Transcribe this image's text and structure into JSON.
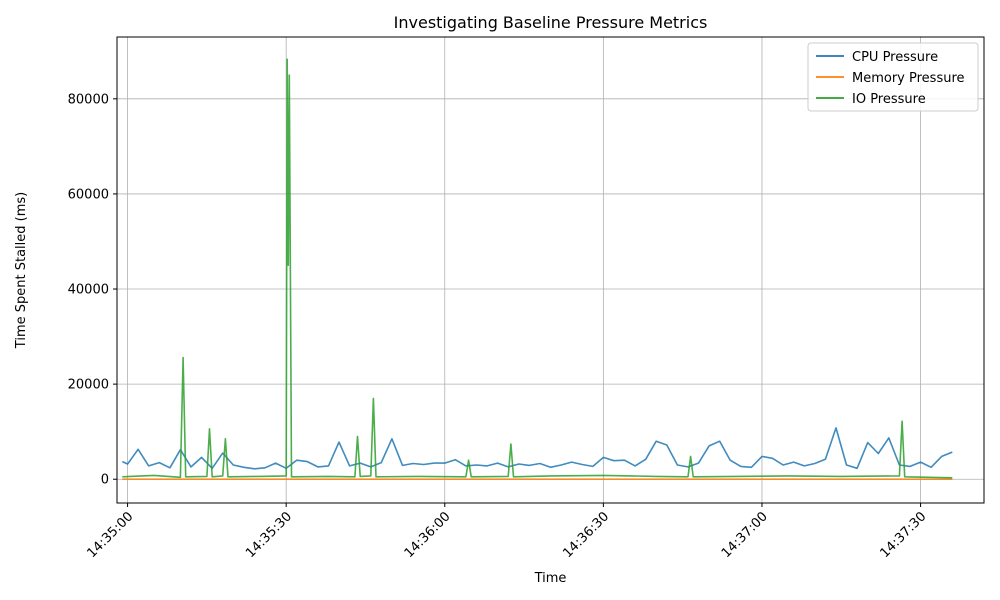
{
  "chart_data": {
    "type": "line",
    "title": "Investigating Baseline Pressure Metrics",
    "xlabel": "Time",
    "ylabel": "Time Spent Stalled (ms)",
    "x_ticks": [
      "14:35:00",
      "14:35:30",
      "14:36:00",
      "14:36:30",
      "14:37:00",
      "14:37:30"
    ],
    "y_ticks": [
      0,
      20000,
      40000,
      60000,
      80000
    ],
    "xlim": [
      "14:34:58",
      "14:37:42"
    ],
    "ylim": [
      -5000,
      93000
    ],
    "grid": true,
    "legend_position": "top-right",
    "series": [
      {
        "name": "CPU Pressure",
        "color": "#1f77b4",
        "x": [
          "14:34:59",
          "14:35:00",
          "14:35:02",
          "14:35:04",
          "14:35:06",
          "14:35:08",
          "14:35:10",
          "14:35:12",
          "14:35:14",
          "14:35:16",
          "14:35:18",
          "14:35:20",
          "14:35:22",
          "14:35:24",
          "14:35:26",
          "14:35:28",
          "14:35:30",
          "14:35:32",
          "14:35:34",
          "14:35:36",
          "14:35:38",
          "14:35:40",
          "14:35:42",
          "14:35:44",
          "14:35:46",
          "14:35:48",
          "14:35:50",
          "14:35:52",
          "14:35:54",
          "14:35:56",
          "14:35:58",
          "14:36:00",
          "14:36:02",
          "14:36:04",
          "14:36:06",
          "14:36:08",
          "14:36:10",
          "14:36:12",
          "14:36:14",
          "14:36:16",
          "14:36:18",
          "14:36:20",
          "14:36:22",
          "14:36:24",
          "14:36:26",
          "14:36:28",
          "14:36:30",
          "14:36:32",
          "14:36:34",
          "14:36:36",
          "14:36:38",
          "14:36:40",
          "14:36:42",
          "14:36:44",
          "14:36:46",
          "14:36:48",
          "14:36:50",
          "14:36:52",
          "14:36:54",
          "14:36:56",
          "14:36:58",
          "14:37:00",
          "14:37:02",
          "14:37:04",
          "14:37:06",
          "14:37:08",
          "14:37:10",
          "14:37:12",
          "14:37:14",
          "14:37:16",
          "14:37:18",
          "14:37:20",
          "14:37:22",
          "14:37:24",
          "14:37:26",
          "14:37:28",
          "14:37:30",
          "14:37:32",
          "14:37:34",
          "14:37:36"
        ],
        "y": [
          3700,
          3200,
          6300,
          2800,
          3500,
          2400,
          6200,
          2600,
          4600,
          2300,
          5500,
          3000,
          2500,
          2200,
          2400,
          3400,
          2300,
          4000,
          3700,
          2600,
          2800,
          7800,
          2800,
          3400,
          2600,
          3500,
          8500,
          2900,
          3300,
          3100,
          3400,
          3400,
          4100,
          2800,
          3000,
          2800,
          3400,
          2600,
          3200,
          2900,
          3300,
          2500,
          3000,
          3600,
          3100,
          2700,
          4600,
          3900,
          4000,
          2800,
          4200,
          8000,
          7200,
          3000,
          2600,
          3400,
          7000,
          8000,
          4000,
          2700,
          2500,
          4800,
          4400,
          3000,
          3600,
          2800,
          3300,
          4200,
          10800,
          3000,
          2300,
          7700,
          5400,
          8700,
          3000,
          2700,
          3600,
          2500,
          4800,
          5700
        ]
      },
      {
        "name": "Memory Pressure",
        "color": "#ff7f0e",
        "x": [
          "14:34:59",
          "14:35:30",
          "14:36:00",
          "14:36:30",
          "14:37:00",
          "14:37:36"
        ],
        "y": [
          0,
          0,
          0,
          0,
          0,
          0
        ]
      },
      {
        "name": "IO Pressure",
        "color": "#2ca02c",
        "x": [
          "14:34:59",
          "14:35:05",
          "14:35:10",
          "14:35:10.5",
          "14:35:11",
          "14:35:15",
          "14:35:15.5",
          "14:35:16",
          "14:35:18",
          "14:35:18.5",
          "14:35:19",
          "14:35:25",
          "14:35:30",
          "14:35:30.2",
          "14:35:30.4",
          "14:35:30.6",
          "14:35:31",
          "14:35:38",
          "14:35:43",
          "14:35:43.5",
          "14:35:44",
          "14:35:46",
          "14:35:46.5",
          "14:35:47",
          "14:35:55",
          "14:36:04",
          "14:36:04.5",
          "14:36:05",
          "14:36:12",
          "14:36:12.5",
          "14:36:13",
          "14:36:20",
          "14:36:30",
          "14:36:40",
          "14:36:46",
          "14:36:46.5",
          "14:36:47",
          "14:36:55",
          "14:37:05",
          "14:37:15",
          "14:37:26",
          "14:37:26.5",
          "14:37:27",
          "14:37:36"
        ],
        "y": [
          500,
          800,
          400,
          25600,
          500,
          600,
          10600,
          500,
          700,
          8500,
          500,
          600,
          700,
          88300,
          45000,
          85000,
          500,
          600,
          500,
          9000,
          600,
          700,
          17000,
          500,
          600,
          500,
          4000,
          500,
          600,
          7400,
          500,
          700,
          800,
          600,
          500,
          4800,
          500,
          600,
          700,
          600,
          700,
          12200,
          500,
          300
        ]
      }
    ]
  }
}
